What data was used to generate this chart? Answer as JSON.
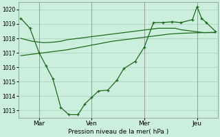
{
  "background_color": "#cceedd",
  "grid_color": "#aaccbb",
  "line_color": "#1a6b1a",
  "xlabel": "Pression niveau de la mer( hPa )",
  "ylim": [
    1012.5,
    1020.5
  ],
  "yticks": [
    1013,
    1014,
    1015,
    1016,
    1017,
    1018,
    1019,
    1020
  ],
  "xtick_labels": [
    "Mar",
    "Ven",
    "Mer",
    "Jeu"
  ],
  "xtick_positions": [
    16,
    62,
    108,
    154
  ],
  "line1_x": [
    0,
    5,
    10,
    15,
    20,
    25,
    30,
    35,
    40,
    45,
    50,
    55,
    60,
    65,
    70,
    75,
    80,
    85,
    90,
    95,
    100,
    105,
    110,
    115,
    120,
    125,
    130,
    135,
    140,
    145,
    150,
    155,
    160,
    165,
    170
  ],
  "line1_y": [
    1018.0,
    1017.9,
    1017.8,
    1017.75,
    1017.7,
    1017.72,
    1017.75,
    1017.8,
    1017.9,
    1017.95,
    1018.0,
    1018.05,
    1018.1,
    1018.15,
    1018.2,
    1018.25,
    1018.3,
    1018.35,
    1018.4,
    1018.45,
    1018.5,
    1018.55,
    1018.6,
    1018.65,
    1018.7,
    1018.7,
    1018.7,
    1018.7,
    1018.6,
    1018.55,
    1018.5,
    1018.45,
    1018.4,
    1018.4,
    1018.4
  ],
  "line2_x": [
    0,
    10,
    20,
    30,
    40,
    50,
    60,
    70,
    80,
    90,
    100,
    110,
    120,
    130,
    140,
    150,
    160,
    170
  ],
  "line2_y": [
    1016.8,
    1016.9,
    1017.0,
    1017.1,
    1017.2,
    1017.35,
    1017.5,
    1017.65,
    1017.8,
    1017.9,
    1018.0,
    1018.1,
    1018.2,
    1018.3,
    1018.35,
    1018.38,
    1018.4,
    1018.42
  ],
  "line3_x": [
    0,
    8,
    16,
    22,
    28,
    35,
    42,
    50,
    56,
    62,
    68,
    76,
    84,
    90,
    100,
    108,
    116,
    124,
    132,
    140,
    150,
    154,
    158,
    162,
    170
  ],
  "line3_y": [
    1019.4,
    1018.7,
    1017.0,
    1016.1,
    1015.2,
    1013.2,
    1012.7,
    1012.7,
    1013.45,
    1013.9,
    1014.35,
    1014.4,
    1015.1,
    1015.9,
    1016.4,
    1017.4,
    1019.1,
    1019.1,
    1019.15,
    1019.1,
    1019.3,
    1020.2,
    1019.4,
    1019.1,
    1018.5
  ],
  "vline_positions": [
    16,
    62,
    108,
    154
  ],
  "xlim": [
    -2,
    172
  ],
  "figsize": [
    3.2,
    2.0
  ],
  "dpi": 100
}
